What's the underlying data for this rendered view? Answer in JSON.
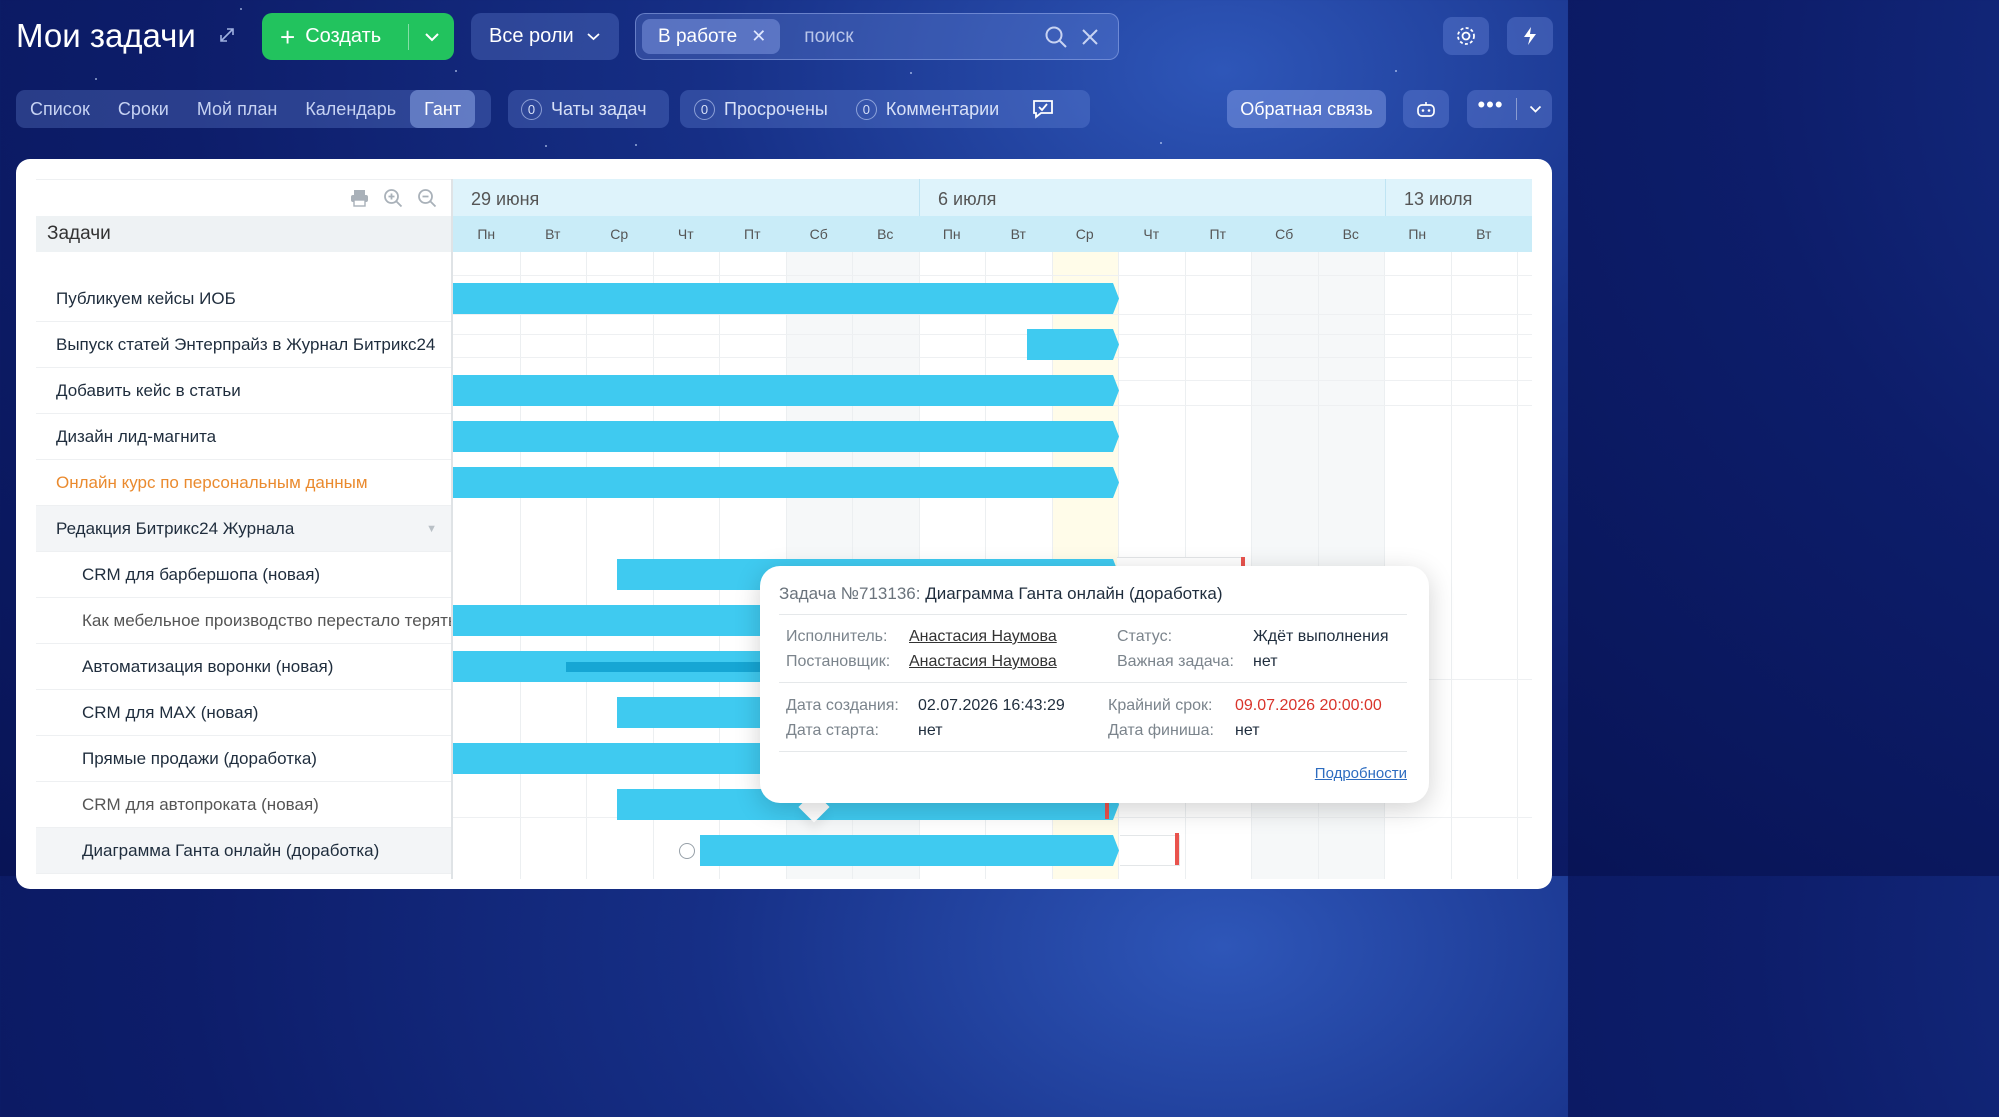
{
  "header": {
    "title": "Мои задачи",
    "create_label": "Создать",
    "roles_label": "Все роли",
    "filter_chip": "В работе",
    "search_placeholder": "поиск"
  },
  "views": {
    "tabs": [
      {
        "label": "Список"
      },
      {
        "label": "Сроки"
      },
      {
        "label": "Мой план"
      },
      {
        "label": "Календарь"
      },
      {
        "label": "Гант",
        "active": true
      }
    ],
    "counters": [
      {
        "count": "0",
        "label": "Чаты задач"
      },
      {
        "count": "0",
        "label": "Просрочены"
      },
      {
        "count": "0",
        "label": "Комментарии"
      }
    ],
    "feedback_label": "Обратная связь"
  },
  "task_list": {
    "header": "Задачи",
    "rows": [
      {
        "label": "Публикуем кейсы ИОБ"
      },
      {
        "label": "Выпуск статей Энтерпрайз в Журнал Битрикс24"
      },
      {
        "label": "Добавить кейс в статьи"
      },
      {
        "label": "Дизайн лид-магнита"
      },
      {
        "label": "Онлайн курс по персональным данным",
        "color": "#ea8a2e"
      },
      {
        "label": "Редакция Битрикс24 Журнала",
        "group": true
      },
      {
        "label": "CRM для барбершопа (новая)"
      },
      {
        "label": "Как мебельное производство перестало терять заказы"
      },
      {
        "label": "Автоматизация воронки (новая)"
      },
      {
        "label": "CRM для МАХ (новая)"
      },
      {
        "label": "Прямые продажи (доработка)"
      },
      {
        "label": "CRM для автопроката (новая)"
      },
      {
        "label": "Диаграмма Ганта онлайн (доработка)"
      }
    ]
  },
  "timeline": {
    "weeks": [
      "29 июня",
      "6 июля",
      "13 июля"
    ],
    "days": [
      "Пн",
      "Вт",
      "Ср",
      "Чт",
      "Пт",
      "Сб",
      "Вс",
      "Пн",
      "Вт",
      "Ср",
      "Чт",
      "Пт",
      "Сб",
      "Вс",
      "Пн",
      "Вт"
    ],
    "today_index": 9,
    "weekend_indices": [
      5,
      6,
      12,
      13
    ]
  },
  "popup": {
    "task_label": "Задача №713136:",
    "task_title": "Диаграмма Ганта онлайн (доработка)",
    "assignee_label": "Исполнитель:",
    "assignee": "Анастасия Наумова",
    "creator_label": "Постановщик:",
    "creator": "Анастасия Наумова",
    "status_label": "Статус:",
    "status": "Ждёт выполнения",
    "important_label": "Важная задача:",
    "important": "нет",
    "created_label": "Дата создания:",
    "created_date": "02.07.2026",
    "created_time": "16:43:29",
    "start_label": "Дата старта:",
    "start": "нет",
    "deadline_label": "Крайний срок:",
    "deadline": "09.07.2026 20:00:00",
    "finish_label": "Дата финиша:",
    "finish": "нет",
    "details_link": "Подробности"
  }
}
